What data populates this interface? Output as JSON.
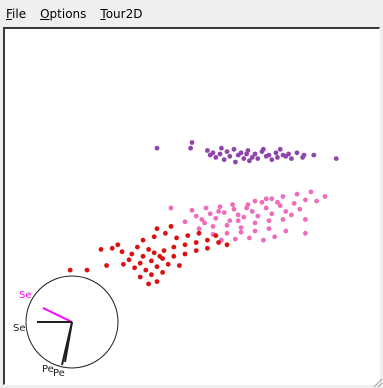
{
  "menu": {
    "items": [
      {
        "id": "file",
        "ul": "F",
        "rest": "ile"
      },
      {
        "id": "options",
        "ul": "O",
        "rest": "ptions"
      },
      {
        "id": "tour2d",
        "ul": "T",
        "rest": "our2D"
      }
    ]
  },
  "colors": {
    "purple": "#8e44ad",
    "pink": "#f06cb8",
    "red": "#dc1010",
    "axis_magenta": "#ff00ff",
    "axis_dark": "#202020"
  },
  "axes_widget": {
    "labels": [
      {
        "key": "se_top",
        "text": "Se",
        "color": "#ff00ff"
      },
      {
        "key": "se_left",
        "text": "Se",
        "color": "#202020"
      },
      {
        "key": "pe_a",
        "text": "Pe",
        "color": "#202020"
      },
      {
        "key": "pe_b",
        "text": "Pe",
        "color": "#202020"
      }
    ]
  },
  "chart_data": {
    "type": "scatter",
    "series": [
      {
        "color": "#8e44ad",
        "points": [
          [
            -0.2,
            0.92
          ],
          [
            0.05,
            0.97
          ],
          [
            0.04,
            0.92
          ],
          [
            0.16,
            0.9
          ],
          [
            0.2,
            0.88
          ],
          [
            0.25,
            0.87
          ],
          [
            0.3,
            0.89
          ],
          [
            0.35,
            0.91
          ],
          [
            0.4,
            0.88
          ],
          [
            0.45,
            0.9
          ],
          [
            0.5,
            0.87
          ],
          [
            0.55,
            0.89
          ],
          [
            0.6,
            0.86
          ],
          [
            0.65,
            0.88
          ],
          [
            0.7,
            0.86
          ],
          [
            0.74,
            0.87
          ],
          [
            0.8,
            0.88
          ],
          [
            0.85,
            0.86
          ],
          [
            0.92,
            0.86
          ],
          [
            0.22,
            0.84
          ],
          [
            0.32,
            0.85
          ],
          [
            0.38,
            0.86
          ],
          [
            0.48,
            0.84
          ],
          [
            0.58,
            0.85
          ],
          [
            0.66,
            0.84
          ],
          [
            0.72,
            0.85
          ],
          [
            0.28,
            0.82
          ],
          [
            0.42,
            0.83
          ],
          [
            0.52,
            0.83
          ],
          [
            0.62,
            0.82
          ],
          [
            0.76,
            0.83
          ],
          [
            0.84,
            0.84
          ],
          [
            1.08,
            0.83
          ],
          [
            0.36,
            0.8
          ],
          [
            0.46,
            0.81
          ],
          [
            0.18,
            0.86
          ],
          [
            0.26,
            0.92
          ],
          [
            0.56,
            0.91
          ],
          [
            0.68,
            0.91
          ],
          [
            0.44,
            0.87
          ]
        ]
      },
      {
        "color": "#f06cb8",
        "points": [
          [
            -0.1,
            0.4
          ],
          [
            0.05,
            0.38
          ],
          [
            0.15,
            0.4
          ],
          [
            0.25,
            0.41
          ],
          [
            0.35,
            0.39
          ],
          [
            0.45,
            0.43
          ],
          [
            0.55,
            0.45
          ],
          [
            0.62,
            0.48
          ],
          [
            0.7,
            0.5
          ],
          [
            0.8,
            0.52
          ],
          [
            0.9,
            0.54
          ],
          [
            1.0,
            0.5
          ],
          [
            0.08,
            0.33
          ],
          [
            0.18,
            0.35
          ],
          [
            0.28,
            0.36
          ],
          [
            0.38,
            0.34
          ],
          [
            0.48,
            0.37
          ],
          [
            0.58,
            0.4
          ],
          [
            0.68,
            0.42
          ],
          [
            0.78,
            0.44
          ],
          [
            0.0,
            0.28
          ],
          [
            0.12,
            0.3
          ],
          [
            0.22,
            0.31
          ],
          [
            0.32,
            0.29
          ],
          [
            0.42,
            0.32
          ],
          [
            0.52,
            0.33
          ],
          [
            0.62,
            0.35
          ],
          [
            0.72,
            0.37
          ],
          [
            0.1,
            0.22
          ],
          [
            0.2,
            0.24
          ],
          [
            0.3,
            0.25
          ],
          [
            0.4,
            0.23
          ],
          [
            0.5,
            0.27
          ],
          [
            0.6,
            0.29
          ],
          [
            0.7,
            0.3
          ],
          [
            0.86,
            0.3
          ],
          [
            0.2,
            0.17
          ],
          [
            0.3,
            0.18
          ],
          [
            0.4,
            0.19
          ],
          [
            0.5,
            0.2
          ],
          [
            0.6,
            0.22
          ],
          [
            0.72,
            0.2
          ],
          [
            0.86,
            0.18
          ],
          [
            0.26,
            0.12
          ],
          [
            0.36,
            0.13
          ],
          [
            0.46,
            0.14
          ],
          [
            0.56,
            0.12
          ],
          [
            0.64,
            0.15
          ],
          [
            0.66,
            0.45
          ],
          [
            0.58,
            0.48
          ],
          [
            0.5,
            0.46
          ],
          [
            0.86,
            0.47
          ],
          [
            0.94,
            0.46
          ],
          [
            0.44,
            0.4
          ],
          [
            0.34,
            0.43
          ],
          [
            0.24,
            0.37
          ],
          [
            0.14,
            0.27
          ],
          [
            0.76,
            0.34
          ],
          [
            0.82,
            0.39
          ],
          [
            0.38,
            0.29
          ]
        ]
      },
      {
        "color": "#dc1010",
        "points": [
          [
            -0.52,
            0.05
          ],
          [
            -0.45,
            0.02
          ],
          [
            -0.38,
            0.0
          ],
          [
            -0.3,
            -0.02
          ],
          [
            -0.22,
            0.01
          ],
          [
            -0.15,
            0.03
          ],
          [
            -0.08,
            0.06
          ],
          [
            0.0,
            0.08
          ],
          [
            0.08,
            0.1
          ],
          [
            0.16,
            0.12
          ],
          [
            0.24,
            0.1
          ],
          [
            0.3,
            0.08
          ],
          [
            -0.4,
            -0.05
          ],
          [
            -0.32,
            -0.08
          ],
          [
            -0.24,
            -0.06
          ],
          [
            -0.16,
            -0.04
          ],
          [
            -0.08,
            -0.02
          ],
          [
            0.0,
            0.0
          ],
          [
            0.08,
            0.03
          ],
          [
            0.16,
            0.05
          ],
          [
            -0.36,
            -0.12
          ],
          [
            -0.28,
            -0.14
          ],
          [
            -0.2,
            -0.11
          ],
          [
            -0.12,
            -0.09
          ],
          [
            -0.04,
            -0.1
          ],
          [
            -0.32,
            -0.2
          ],
          [
            -0.24,
            -0.18
          ],
          [
            -0.16,
            -0.16
          ],
          [
            -0.26,
            -0.26
          ],
          [
            -0.2,
            -0.24
          ],
          [
            -0.3,
            0.12
          ],
          [
            -0.22,
            0.15
          ],
          [
            -0.14,
            0.18
          ],
          [
            -0.06,
            0.14
          ],
          [
            0.02,
            0.16
          ],
          [
            -0.82,
            -0.14
          ],
          [
            -0.7,
            -0.14
          ],
          [
            -0.56,
            -0.1
          ],
          [
            -0.44,
            -0.09
          ],
          [
            -0.48,
            0.08
          ],
          [
            -0.6,
            0.04
          ],
          [
            -0.2,
            0.22
          ],
          [
            -0.1,
            0.24
          ],
          [
            0.1,
            0.18
          ],
          [
            0.22,
            0.16
          ],
          [
            -0.34,
            0.06
          ],
          [
            -0.26,
            0.04
          ],
          [
            -0.18,
            -0.02
          ]
        ]
      }
    ]
  }
}
